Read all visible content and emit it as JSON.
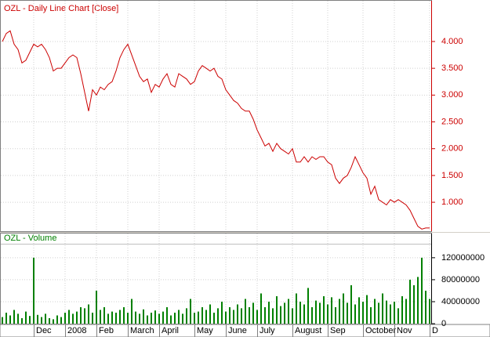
{
  "chart_data": [
    {
      "type": "line",
      "title": "OZL - Daily Line Chart [Close]",
      "color": "#cc0000",
      "values": [
        4.0,
        4.15,
        4.2,
        3.95,
        3.85,
        3.6,
        3.65,
        3.8,
        3.95,
        3.9,
        3.95,
        3.85,
        3.7,
        3.45,
        3.5,
        3.5,
        3.6,
        3.7,
        3.75,
        3.7,
        3.4,
        3.05,
        2.7,
        3.1,
        3.0,
        3.15,
        3.1,
        3.2,
        3.25,
        3.45,
        3.7,
        3.85,
        3.95,
        3.75,
        3.55,
        3.35,
        3.25,
        3.3,
        3.05,
        3.2,
        3.15,
        3.3,
        3.4,
        3.2,
        3.15,
        3.4,
        3.35,
        3.3,
        3.2,
        3.25,
        3.45,
        3.55,
        3.5,
        3.45,
        3.5,
        3.35,
        3.3,
        3.1,
        3.0,
        2.9,
        2.85,
        2.75,
        2.7,
        2.7,
        2.55,
        2.35,
        2.2,
        2.05,
        2.1,
        1.95,
        2.1,
        2.0,
        1.95,
        1.9,
        2.0,
        1.75,
        1.75,
        1.85,
        1.75,
        1.85,
        1.8,
        1.85,
        1.85,
        1.75,
        1.7,
        1.45,
        1.35,
        1.45,
        1.5,
        1.65,
        1.85,
        1.7,
        1.55,
        1.45,
        1.15,
        1.3,
        1.05,
        1.0,
        0.95,
        1.05,
        1.0,
        1.05,
        1.0,
        0.95,
        0.85,
        0.7,
        0.55,
        0.5,
        0.52,
        0.52
      ],
      "ylim": [
        0.46,
        4.76
      ],
      "yticks": [
        {
          "value": 1,
          "label": "1.000"
        },
        {
          "value": 1.5,
          "label": "1.500"
        },
        {
          "value": 2,
          "label": "2.000"
        },
        {
          "value": 2.5,
          "label": "2.500"
        },
        {
          "value": 3,
          "label": "3.000"
        },
        {
          "value": 3.5,
          "label": "3.500"
        },
        {
          "value": 4,
          "label": "4.000"
        }
      ],
      "grid": true
    },
    {
      "type": "bar",
      "title": "OZL - Volume",
      "color": "#008000",
      "categories": [
        null,
        null,
        null,
        null,
        null,
        null,
        null,
        null,
        "Dec",
        null,
        null,
        null,
        null,
        null,
        null,
        null,
        "2008",
        null,
        null,
        null,
        null,
        null,
        null,
        null,
        "Feb",
        null,
        null,
        null,
        null,
        null,
        null,
        null,
        "March",
        null,
        null,
        null,
        null,
        null,
        null,
        null,
        "April",
        null,
        null,
        null,
        null,
        null,
        null,
        null,
        null,
        "May",
        null,
        null,
        null,
        null,
        null,
        null,
        null,
        "June",
        null,
        null,
        null,
        null,
        null,
        null,
        null,
        "July",
        null,
        null,
        null,
        null,
        null,
        null,
        null,
        null,
        "August",
        null,
        null,
        null,
        null,
        null,
        null,
        null,
        null,
        "Sep",
        null,
        null,
        null,
        null,
        null,
        null,
        null,
        null,
        "October",
        null,
        null,
        null,
        null,
        null,
        null,
        null,
        "Nov",
        null,
        null,
        null,
        null,
        null,
        null,
        null,
        null,
        "D"
      ],
      "values": [
        12000000,
        20000000,
        15000000,
        25000000,
        18000000,
        10000000,
        22000000,
        14000000,
        120000000,
        16000000,
        12000000,
        18000000,
        10000000,
        8000000,
        15000000,
        12000000,
        20000000,
        25000000,
        18000000,
        22000000,
        30000000,
        28000000,
        35000000,
        20000000,
        60000000,
        25000000,
        30000000,
        18000000,
        22000000,
        20000000,
        25000000,
        30000000,
        20000000,
        45000000,
        22000000,
        18000000,
        26000000,
        15000000,
        20000000,
        24000000,
        18000000,
        22000000,
        30000000,
        15000000,
        20000000,
        25000000,
        18000000,
        28000000,
        45000000,
        20000000,
        22000000,
        30000000,
        25000000,
        35000000,
        20000000,
        28000000,
        40000000,
        22000000,
        30000000,
        25000000,
        35000000,
        28000000,
        45000000,
        30000000,
        38000000,
        25000000,
        55000000,
        30000000,
        40000000,
        28000000,
        50000000,
        32000000,
        38000000,
        45000000,
        28000000,
        55000000,
        40000000,
        35000000,
        65000000,
        30000000,
        42000000,
        38000000,
        50000000,
        35000000,
        48000000,
        30000000,
        45000000,
        55000000,
        38000000,
        70000000,
        35000000,
        48000000,
        40000000,
        52000000,
        30000000,
        45000000,
        38000000,
        55000000,
        42000000,
        35000000,
        40000000,
        28000000,
        50000000,
        45000000,
        80000000,
        70000000,
        85000000,
        120000000,
        60000000,
        45000000
      ],
      "ylim": [
        0,
        164000000
      ],
      "yticks": [
        0,
        40000000,
        80000000,
        120000000
      ],
      "grid": true
    }
  ]
}
